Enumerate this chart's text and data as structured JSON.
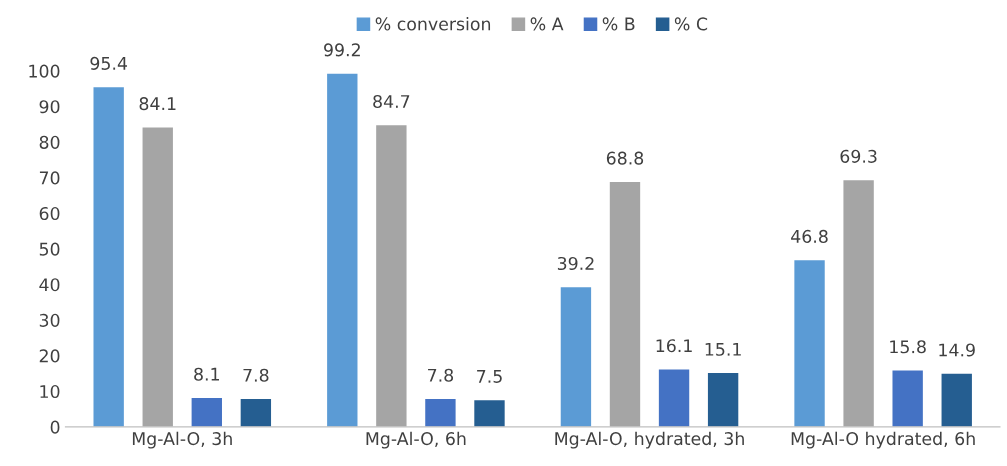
{
  "chart_data": {
    "type": "bar",
    "categories": [
      "Mg-Al-O, 3h",
      "Mg-Al-O, 6h",
      "Mg-Al-O, hydrated, 3h",
      "Mg-Al-O hydrated, 6h"
    ],
    "series": [
      {
        "name": "% conversion",
        "color": "#5b9bd5",
        "values": [
          95.4,
          99.2,
          39.2,
          46.8
        ]
      },
      {
        "name": "% A",
        "color": "#a5a5a5",
        "values": [
          84.1,
          84.7,
          68.8,
          69.3
        ]
      },
      {
        "name": "% B",
        "color": "#4472c4",
        "values": [
          8.1,
          7.8,
          16.1,
          15.8
        ]
      },
      {
        "name": "% C",
        "color": "#255e91",
        "values": [
          7.8,
          7.5,
          15.1,
          14.9
        ]
      }
    ],
    "ylim": [
      0,
      100
    ],
    "yticks": [
      0,
      10,
      20,
      30,
      40,
      50,
      60,
      70,
      80,
      90,
      100
    ],
    "grid": false,
    "legend": "top",
    "data_labels": true
  }
}
